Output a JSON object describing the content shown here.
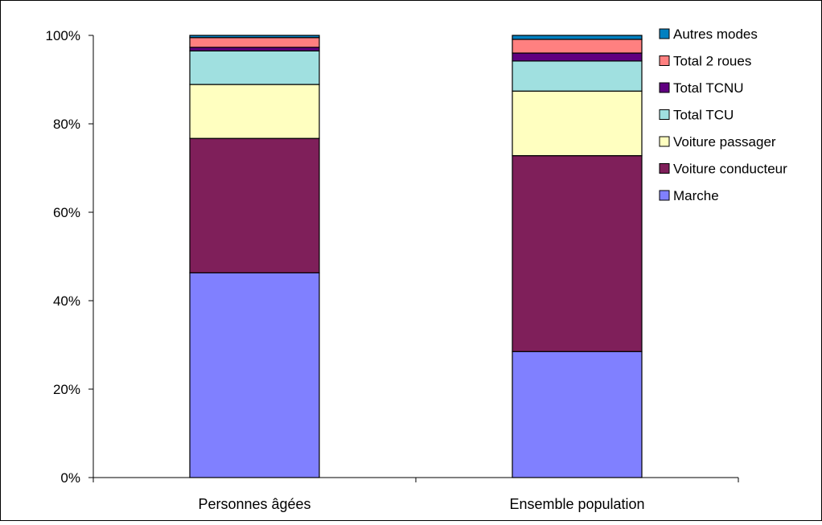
{
  "chart_data": {
    "type": "bar",
    "stacked": true,
    "percent": true,
    "categories": [
      "Personnes âgées",
      "Ensemble population"
    ],
    "series": [
      {
        "name": "Marche",
        "color": "#8080FF",
        "values": [
          46.3,
          28.5
        ]
      },
      {
        "name": "Voiture conducteur",
        "color": "#7F1F5A",
        "values": [
          30.4,
          44.3
        ]
      },
      {
        "name": "Voiture passager",
        "color": "#FFFFC0",
        "values": [
          12.2,
          14.6
        ]
      },
      {
        "name": "Total TCU",
        "color": "#A0E0E0",
        "values": [
          7.6,
          6.8
        ]
      },
      {
        "name": "Total TCNU",
        "color": "#600080",
        "values": [
          0.8,
          1.8
        ]
      },
      {
        "name": "Total 2 roues",
        "color": "#FF8080",
        "values": [
          2.2,
          3.1
        ]
      },
      {
        "name": "Autres modes",
        "color": "#0080C0",
        "values": [
          0.5,
          0.9
        ]
      }
    ],
    "y_ticks": [
      "0%",
      "20%",
      "40%",
      "60%",
      "80%",
      "100%"
    ],
    "ylim": [
      0,
      100
    ],
    "title": "",
    "xlabel": "",
    "ylabel": "",
    "legend_position": "top-right",
    "grid": false
  }
}
